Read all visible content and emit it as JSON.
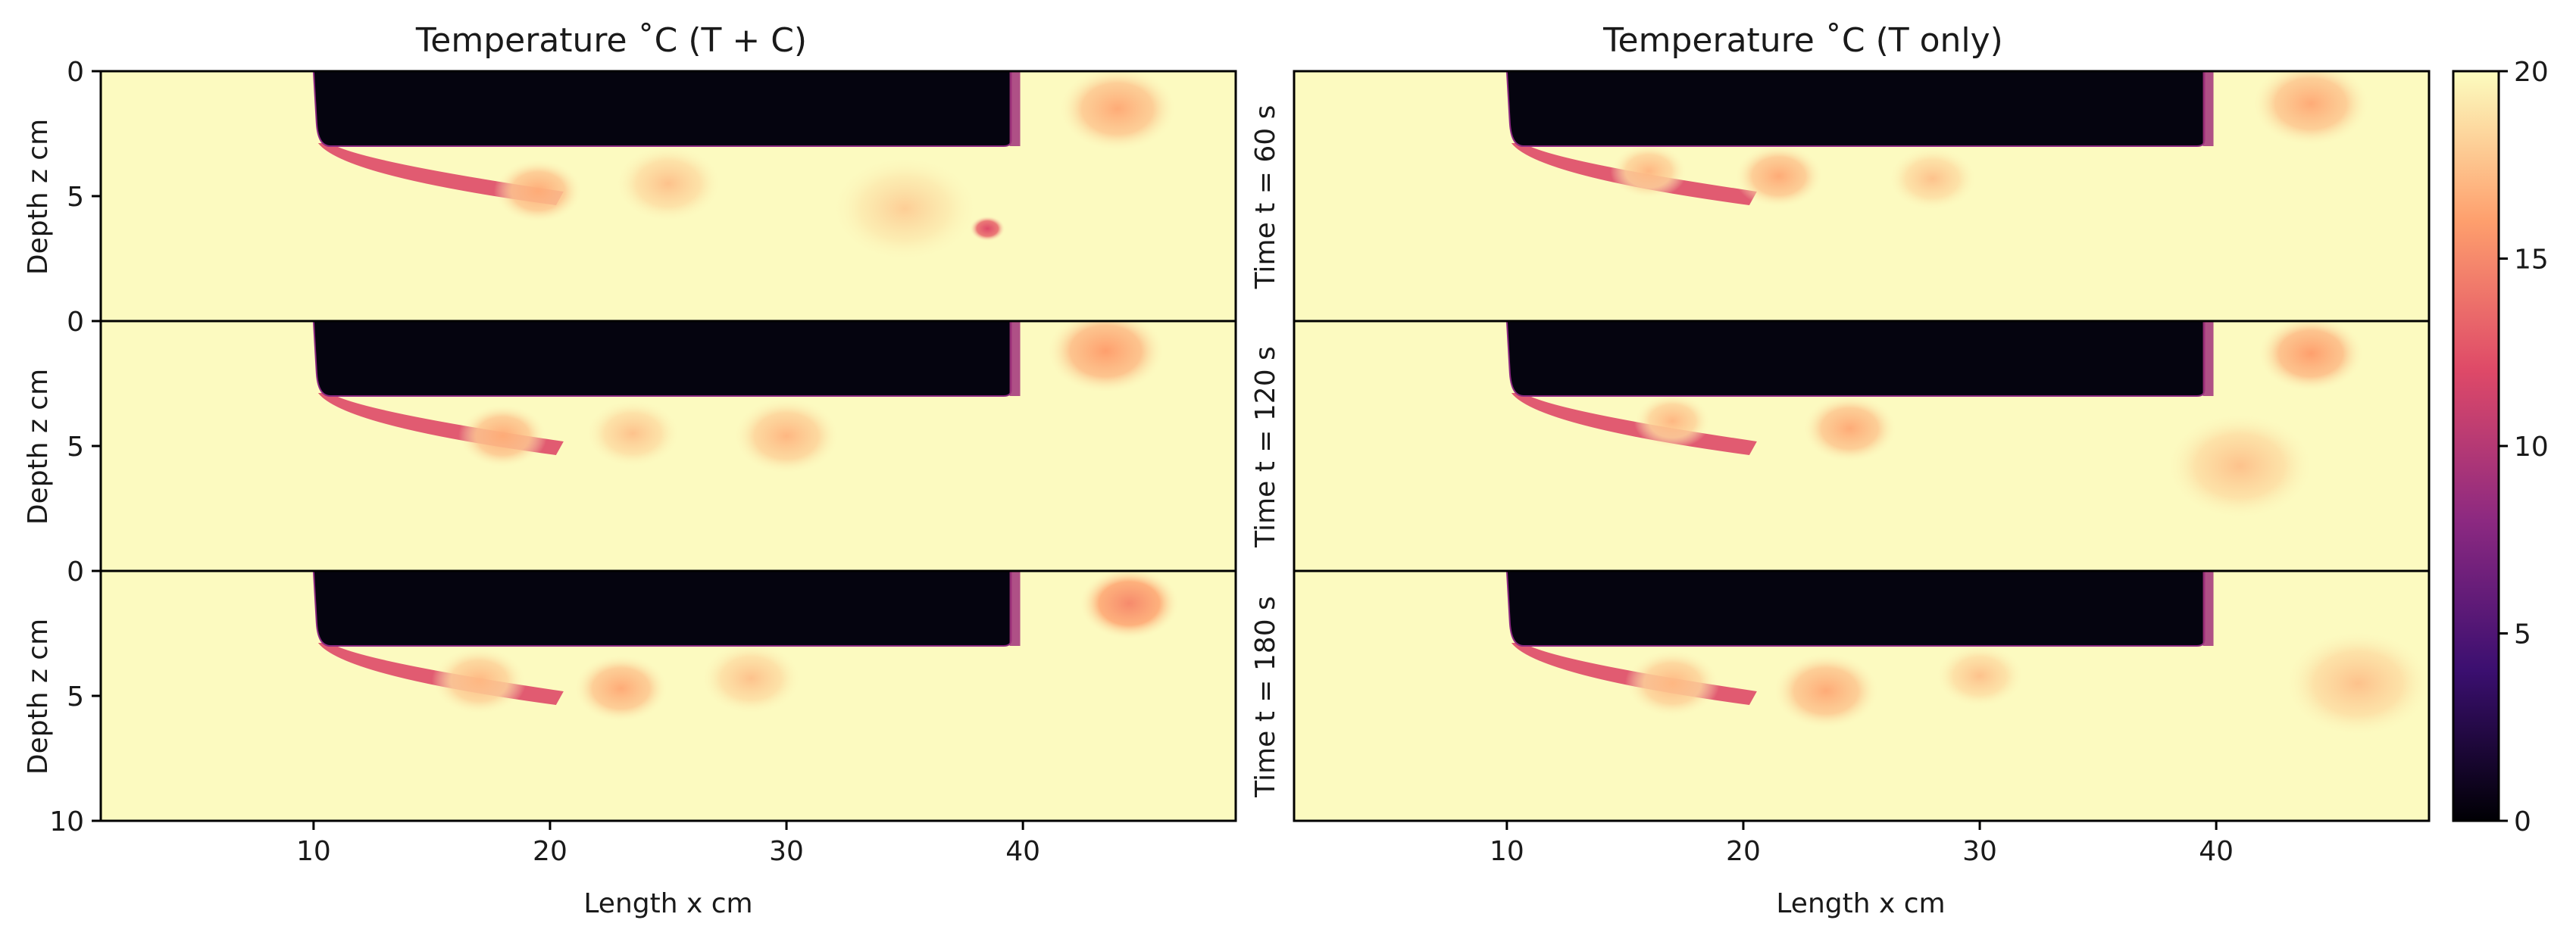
{
  "colors": {
    "background": "#fcfac0",
    "ice": "#05040f",
    "colormap": [
      "#000004",
      "#3b0f70",
      "#8c2981",
      "#de4968",
      "#fe9f6d",
      "#fcfdbf"
    ]
  },
  "chart_data": [
    {
      "type": "heatmap",
      "title": "Temperature ˚C (T + C)",
      "time_label": "Time t = 60 s",
      "xlabel": "",
      "ylabel": "Depth z cm",
      "xlim": [
        1,
        49
      ],
      "ylim": [
        10,
        0
      ],
      "y_ticks": [
        0,
        5
      ],
      "ice_block": {
        "x_start": 10,
        "x_end": 39.5,
        "depth": 3
      },
      "warm_eddies": [
        {
          "x": 19.5,
          "z": 4.8,
          "r": 1.5,
          "t": 16.5
        },
        {
          "x": 25,
          "z": 4.5,
          "r": 1.8,
          "t": 17.5
        },
        {
          "x": 35,
          "z": 5.5,
          "r": 2.5,
          "t": 18
        },
        {
          "x": 38.5,
          "z": 6.3,
          "r": 0.6,
          "t": 12
        },
        {
          "x": 44,
          "z": 1.5,
          "r": 2,
          "t": 16.5
        }
      ]
    },
    {
      "type": "heatmap",
      "title": "Temperature ˚C (T only)",
      "time_label": "Time t = 60 s",
      "xlabel": "",
      "ylabel": "",
      "xlim": [
        1,
        49
      ],
      "ylim": [
        10,
        0
      ],
      "ice_block": {
        "x_start": 10,
        "x_end": 39.5,
        "depth": 3
      },
      "warm_eddies": [
        {
          "x": 16,
          "z": 4,
          "r": 1.3,
          "t": 17
        },
        {
          "x": 21.5,
          "z": 4.2,
          "r": 1.5,
          "t": 16.5
        },
        {
          "x": 28,
          "z": 4.3,
          "r": 1.5,
          "t": 17.5
        },
        {
          "x": 44,
          "z": 1.3,
          "r": 2,
          "t": 16.5
        }
      ]
    },
    {
      "type": "heatmap",
      "title": "",
      "time_label": "Time t = 120 s",
      "xlabel": "",
      "ylabel": "Depth z cm",
      "xlim": [
        1,
        49
      ],
      "ylim": [
        10,
        0
      ],
      "y_ticks": [
        0,
        5
      ],
      "ice_block": {
        "x_start": 10,
        "x_end": 39.5,
        "depth": 3
      },
      "warm_eddies": [
        {
          "x": 18,
          "z": 4.6,
          "r": 1.5,
          "t": 16.5
        },
        {
          "x": 23.5,
          "z": 4.5,
          "r": 1.6,
          "t": 17.5
        },
        {
          "x": 30,
          "z": 4.6,
          "r": 1.8,
          "t": 17
        },
        {
          "x": 43.5,
          "z": 1.2,
          "r": 2,
          "t": 16
        }
      ]
    },
    {
      "type": "heatmap",
      "title": "",
      "time_label": "Time t = 120 s",
      "xlabel": "",
      "ylabel": "",
      "xlim": [
        1,
        49
      ],
      "ylim": [
        10,
        0
      ],
      "ice_block": {
        "x_start": 10,
        "x_end": 39.5,
        "depth": 3
      },
      "warm_eddies": [
        {
          "x": 17,
          "z": 4,
          "r": 1.3,
          "t": 17
        },
        {
          "x": 24.5,
          "z": 4.3,
          "r": 1.6,
          "t": 16.5
        },
        {
          "x": 41,
          "z": 5.8,
          "r": 2.5,
          "t": 17.5
        },
        {
          "x": 44,
          "z": 1.3,
          "r": 1.8,
          "t": 16
        }
      ]
    },
    {
      "type": "heatmap",
      "title": "",
      "time_label": "Time t = 180 s",
      "xlabel": "Length x cm",
      "ylabel": "Depth z cm",
      "xlim": [
        1,
        49
      ],
      "ylim": [
        10,
        0
      ],
      "y_ticks": [
        0,
        5,
        10
      ],
      "x_ticks": [
        10,
        20,
        30,
        40
      ],
      "ice_block": {
        "x_start": 10,
        "x_end": 39.5,
        "depth": 3
      },
      "warm_eddies": [
        {
          "x": 17,
          "z": 4.4,
          "r": 1.6,
          "t": 17
        },
        {
          "x": 23,
          "z": 4.7,
          "r": 1.6,
          "t": 16.5
        },
        {
          "x": 28.5,
          "z": 4.3,
          "r": 1.7,
          "t": 17.5
        },
        {
          "x": 44.5,
          "z": 1.3,
          "r": 1.7,
          "t": 15
        }
      ]
    },
    {
      "type": "heatmap",
      "title": "",
      "time_label": "Time t = 180 s",
      "xlabel": "Length x cm",
      "ylabel": "",
      "xlim": [
        1,
        49
      ],
      "ylim": [
        10,
        0
      ],
      "x_ticks": [
        10,
        20,
        30,
        40
      ],
      "ice_block": {
        "x_start": 10,
        "x_end": 39.5,
        "depth": 3
      },
      "warm_eddies": [
        {
          "x": 17,
          "z": 4.5,
          "r": 1.6,
          "t": 17
        },
        {
          "x": 23.5,
          "z": 4.8,
          "r": 1.8,
          "t": 16.5
        },
        {
          "x": 30,
          "z": 4.2,
          "r": 1.5,
          "t": 17.5
        },
        {
          "x": 46,
          "z": 4.5,
          "r": 2.5,
          "t": 17.5
        }
      ]
    }
  ],
  "colorbar": {
    "min": 0,
    "max": 20,
    "ticks": [
      0,
      5,
      10,
      15,
      20
    ]
  }
}
